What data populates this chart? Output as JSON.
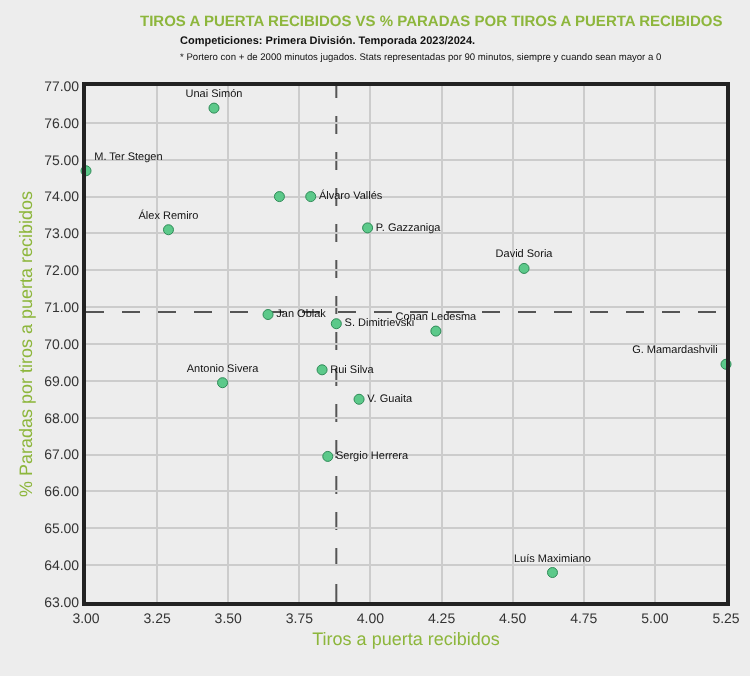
{
  "chart_data": {
    "type": "scatter",
    "title": "TIROS A PUERTA RECIBIDOS VS % PARADAS POR TIROS A PUERTA RECIBIDOS",
    "subtitle": "Competiciones: Primera División. Temporada 2023/2024.",
    "annotations": [
      "* Portero con + de 2000 minutos jugados. Stats representadas por 90 minutos, siempre y cuando sean mayor a 0"
    ],
    "xlabel": "Tiros a puerta recibidos",
    "ylabel": "% Paradas por tiros a puerta recibidos",
    "x": [
      3.45,
      3.0,
      3.29,
      3.68,
      3.79,
      3.99,
      4.54,
      4.23,
      5.25,
      3.64,
      3.88,
      3.83,
      3.48,
      3.96,
      3.85,
      4.64
    ],
    "series": [
      {
        "color": "#5cc98a",
        "values": [
          76.4,
          74.7,
          73.1,
          74.0,
          74.0,
          73.15,
          72.05,
          70.35,
          69.45,
          70.8,
          70.55,
          69.3,
          68.95,
          68.5,
          66.95,
          63.8
        ],
        "value_labels": [
          "Unai Simón",
          "M. Ter Stegen",
          "Álex Remiro",
          null,
          "Álvaro Vallés",
          "P. Gazzaniga",
          "David Soria",
          "Conan Ledesma",
          "G. Mamardashvili",
          "Jan Oblak",
          "S. Dimitrievski",
          "Rui Silva",
          "Antonio Sivera",
          "V. Guaita",
          "Sergio Herrera",
          "Luís Maximiano"
        ]
      }
    ],
    "xlim": [
      3.0,
      5.25
    ],
    "xticks": [
      {
        "value": 3,
        "label": "3.00"
      },
      {
        "value": 3.25,
        "label": "3.25"
      },
      {
        "value": 3.5,
        "label": "3.50"
      },
      {
        "value": 3.75,
        "label": "3.75"
      },
      {
        "value": 4,
        "label": "4.00"
      },
      {
        "value": 4.25,
        "label": "4.25"
      },
      {
        "value": 4.5,
        "label": "4.50"
      },
      {
        "value": 4.75,
        "label": "4.75"
      },
      {
        "value": 5,
        "label": "5.00"
      },
      {
        "value": 5.25,
        "label": "5.25"
      }
    ],
    "ylim": [
      63,
      77
    ],
    "yticks": [
      {
        "value": 63,
        "label": "63.00"
      },
      {
        "value": 64,
        "label": "64.00"
      },
      {
        "value": 65,
        "label": "65.00"
      },
      {
        "value": 66,
        "label": "66.00"
      },
      {
        "value": 67,
        "label": "67.00"
      },
      {
        "value": 68,
        "label": "68.00"
      },
      {
        "value": 69,
        "label": "69.00"
      },
      {
        "value": 70,
        "label": "70.00"
      },
      {
        "value": 71,
        "label": "71.00"
      },
      {
        "value": 72,
        "label": "72.00"
      },
      {
        "value": 73,
        "label": "73.00"
      },
      {
        "value": 74,
        "label": "74.00"
      },
      {
        "value": 75,
        "label": "75.00"
      },
      {
        "value": 76,
        "label": "76.00"
      },
      {
        "value": 77,
        "label": "77.00"
      }
    ],
    "ref_lines": [
      {
        "axis": "x",
        "value": 3.88,
        "color": "#555555",
        "line_style": "dashed"
      },
      {
        "axis": "y",
        "value": 70.87,
        "color": "#555555",
        "line_style": "dashed"
      }
    ],
    "grid": true,
    "marker": "circle",
    "legend": false
  }
}
